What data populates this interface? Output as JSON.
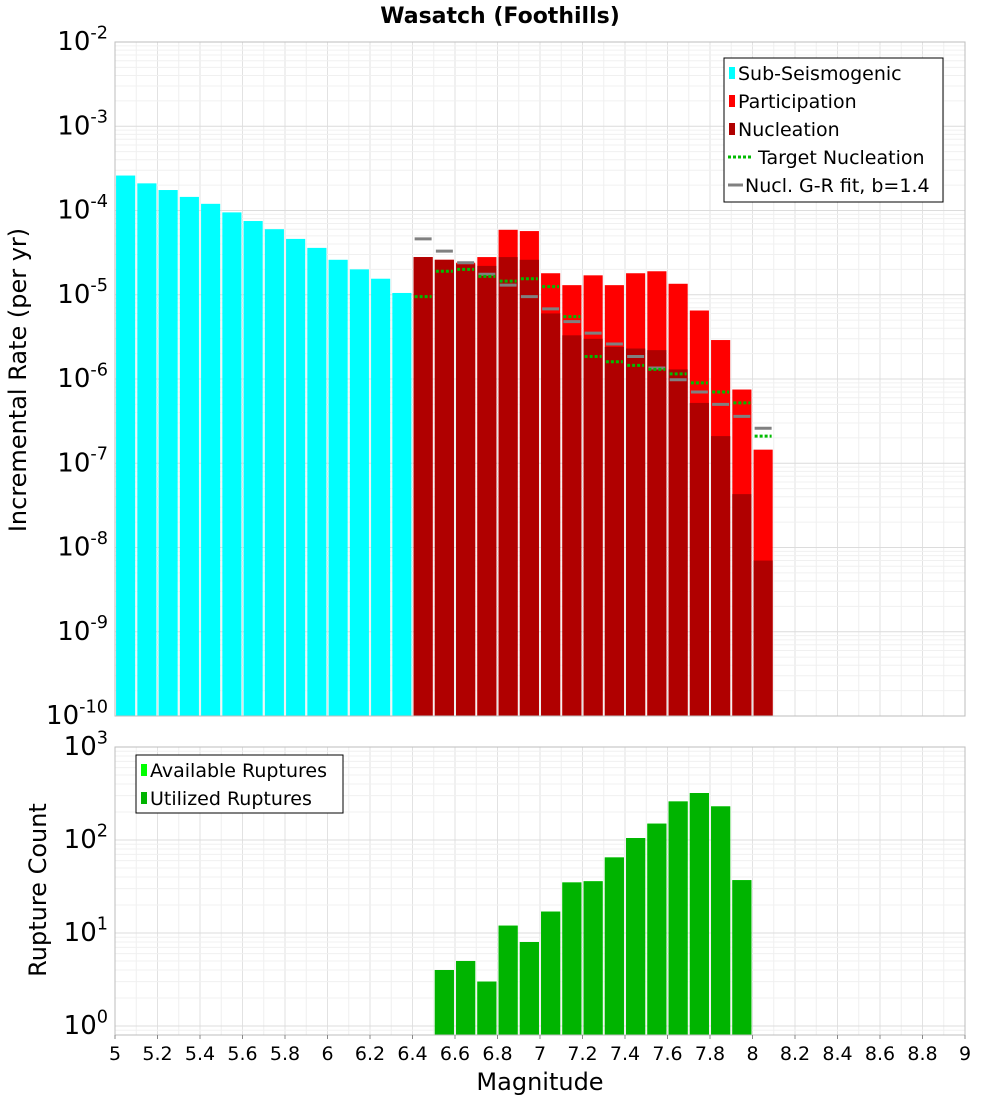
{
  "chart_data": [
    {
      "type": "bar",
      "title": "Wasatch (Foothills)",
      "ylabel": "Incremental Rate (per yr)",
      "xlabel": "",
      "xlim": [
        5,
        9
      ],
      "ylim": [
        1e-10,
        0.01
      ],
      "yscale": "log",
      "ytick_labels": [
        {
          "base": "10",
          "exp": "-10"
        },
        {
          "base": "10",
          "exp": "-9"
        },
        {
          "base": "10",
          "exp": "-8"
        },
        {
          "base": "10",
          "exp": "-7"
        },
        {
          "base": "10",
          "exp": "-6"
        },
        {
          "base": "10",
          "exp": "-5"
        },
        {
          "base": "10",
          "exp": "-4"
        },
        {
          "base": "10",
          "exp": "-3"
        },
        {
          "base": "10",
          "exp": "-2"
        }
      ],
      "bar_width": 0.09,
      "legend": {
        "position": "top-right",
        "entries": [
          "Sub-Seismogenic",
          "Participation",
          "Nucleation",
          "Target Nucleation",
          "Nucl. G-R fit, b=1.4"
        ]
      },
      "series": [
        {
          "name": "Sub-Seismogenic",
          "kind": "bar",
          "color": "#00ffff",
          "x": [
            5.05,
            5.15,
            5.25,
            5.35,
            5.45,
            5.55,
            5.65,
            5.75,
            5.85,
            5.95,
            6.05,
            6.15,
            6.25,
            6.35
          ],
          "values": [
            0.00026,
            0.00021,
            0.000175,
            0.000145,
            0.00012,
            9.5e-05,
            7.5e-05,
            6e-05,
            4.6e-05,
            3.6e-05,
            2.6e-05,
            2e-05,
            1.55e-05,
            1.05e-05
          ]
        },
        {
          "name": "Participation",
          "kind": "bar",
          "color": "#ff0000",
          "x": [
            6.45,
            6.55,
            6.65,
            6.75,
            6.85,
            6.95,
            7.05,
            7.15,
            7.25,
            7.35,
            7.45,
            7.55,
            7.65,
            7.75,
            7.85,
            7.95,
            8.05
          ],
          "values": [
            2.8e-05,
            2.6e-05,
            2.4e-05,
            2.8e-05,
            5.9e-05,
            5.7e-05,
            1.8e-05,
            1.3e-05,
            1.7e-05,
            1.3e-05,
            1.8e-05,
            1.9e-05,
            1.35e-05,
            6.5e-06,
            2.9e-06,
            7.5e-07,
            1.45e-07
          ]
        },
        {
          "name": "Nucleation",
          "kind": "bar",
          "color": "#b00000",
          "x": [
            6.45,
            6.55,
            6.65,
            6.75,
            6.85,
            6.95,
            7.05,
            7.15,
            7.25,
            7.35,
            7.45,
            7.55,
            7.65,
            7.75,
            7.85,
            7.95,
            8.05
          ],
          "values": [
            2.8e-05,
            2.6e-05,
            2.3e-05,
            2.2e-05,
            2.8e-05,
            2.6e-05,
            6e-06,
            3.3e-06,
            3e-06,
            2.4e-06,
            2.3e-06,
            2.2e-06,
            1.3e-06,
            5.2e-07,
            2.1e-07,
            4.3e-08,
            7e-09
          ]
        },
        {
          "name": "Target Nucleation",
          "kind": "dash",
          "color": "#00bb00",
          "x": [
            6.45,
            6.55,
            6.65,
            6.75,
            6.85,
            6.95,
            7.05,
            7.15,
            7.25,
            7.35,
            7.45,
            7.55,
            7.65,
            7.75,
            7.85,
            7.95,
            8.05
          ],
          "values": [
            9.5e-06,
            1.9e-05,
            2e-05,
            1.65e-05,
            1.45e-05,
            1.55e-05,
            1.25e-05,
            5.5e-06,
            1.85e-06,
            1.6e-06,
            1.45e-06,
            1.3e-06,
            1.15e-06,
            9e-07,
            7e-07,
            5.2e-07,
            2.1e-07
          ]
        },
        {
          "name": "Nucl. G-R fit, b=1.4",
          "kind": "dash",
          "color": "#808080",
          "x": [
            6.45,
            6.55,
            6.65,
            6.75,
            6.85,
            6.95,
            7.05,
            7.15,
            7.25,
            7.35,
            7.45,
            7.55,
            7.65,
            7.75,
            7.85,
            7.95,
            8.05
          ],
          "values": [
            4.6e-05,
            3.3e-05,
            2.4e-05,
            1.75e-05,
            1.3e-05,
            9.5e-06,
            6.8e-06,
            4.8e-06,
            3.5e-06,
            2.6e-06,
            1.85e-06,
            1.35e-06,
            9.8e-07,
            7e-07,
            5e-07,
            3.6e-07,
            2.6e-07
          ]
        }
      ]
    },
    {
      "type": "bar",
      "title": "",
      "ylabel": "Rupture Count",
      "xlabel": "Magnitude",
      "xlim": [
        5,
        9
      ],
      "ylim": [
        0.8,
        1000
      ],
      "yscale": "log",
      "ytick_labels": [
        {
          "base": "10",
          "exp": "0"
        },
        {
          "base": "10",
          "exp": "1"
        },
        {
          "base": "10",
          "exp": "2"
        },
        {
          "base": "10",
          "exp": "3"
        }
      ],
      "xtick_labels": [
        "5",
        "5.2",
        "5.4",
        "5.6",
        "5.8",
        "6",
        "6.2",
        "6.4",
        "6.6",
        "6.8",
        "7",
        "7.2",
        "7.4",
        "7.6",
        "7.8",
        "8",
        "8.2",
        "8.4",
        "8.6",
        "8.8",
        "9"
      ],
      "bar_width": 0.09,
      "legend": {
        "position": "top-left",
        "entries": [
          "Available Ruptures",
          "Utilized Ruptures"
        ]
      },
      "series": [
        {
          "name": "Available Ruptures",
          "kind": "bar",
          "color": "#00ff00",
          "x": [
            6.55,
            6.65,
            6.75,
            6.85,
            6.95,
            7.05,
            7.15,
            7.25,
            7.35,
            7.45,
            7.55,
            7.65,
            7.75,
            7.85,
            7.95
          ],
          "values": [
            4,
            5,
            3,
            12,
            8,
            17,
            35,
            36,
            65,
            105,
            150,
            260,
            320,
            230,
            37
          ]
        },
        {
          "name": "Utilized Ruptures",
          "kind": "bar",
          "color": "#00b400",
          "x": [
            6.55,
            6.65,
            6.75,
            6.85,
            6.95,
            7.05,
            7.15,
            7.25,
            7.35,
            7.45,
            7.55,
            7.65,
            7.75,
            7.85,
            7.95
          ],
          "values": [
            4,
            5,
            3,
            12,
            8,
            17,
            35,
            36,
            65,
            105,
            150,
            260,
            320,
            230,
            37
          ]
        }
      ]
    }
  ]
}
